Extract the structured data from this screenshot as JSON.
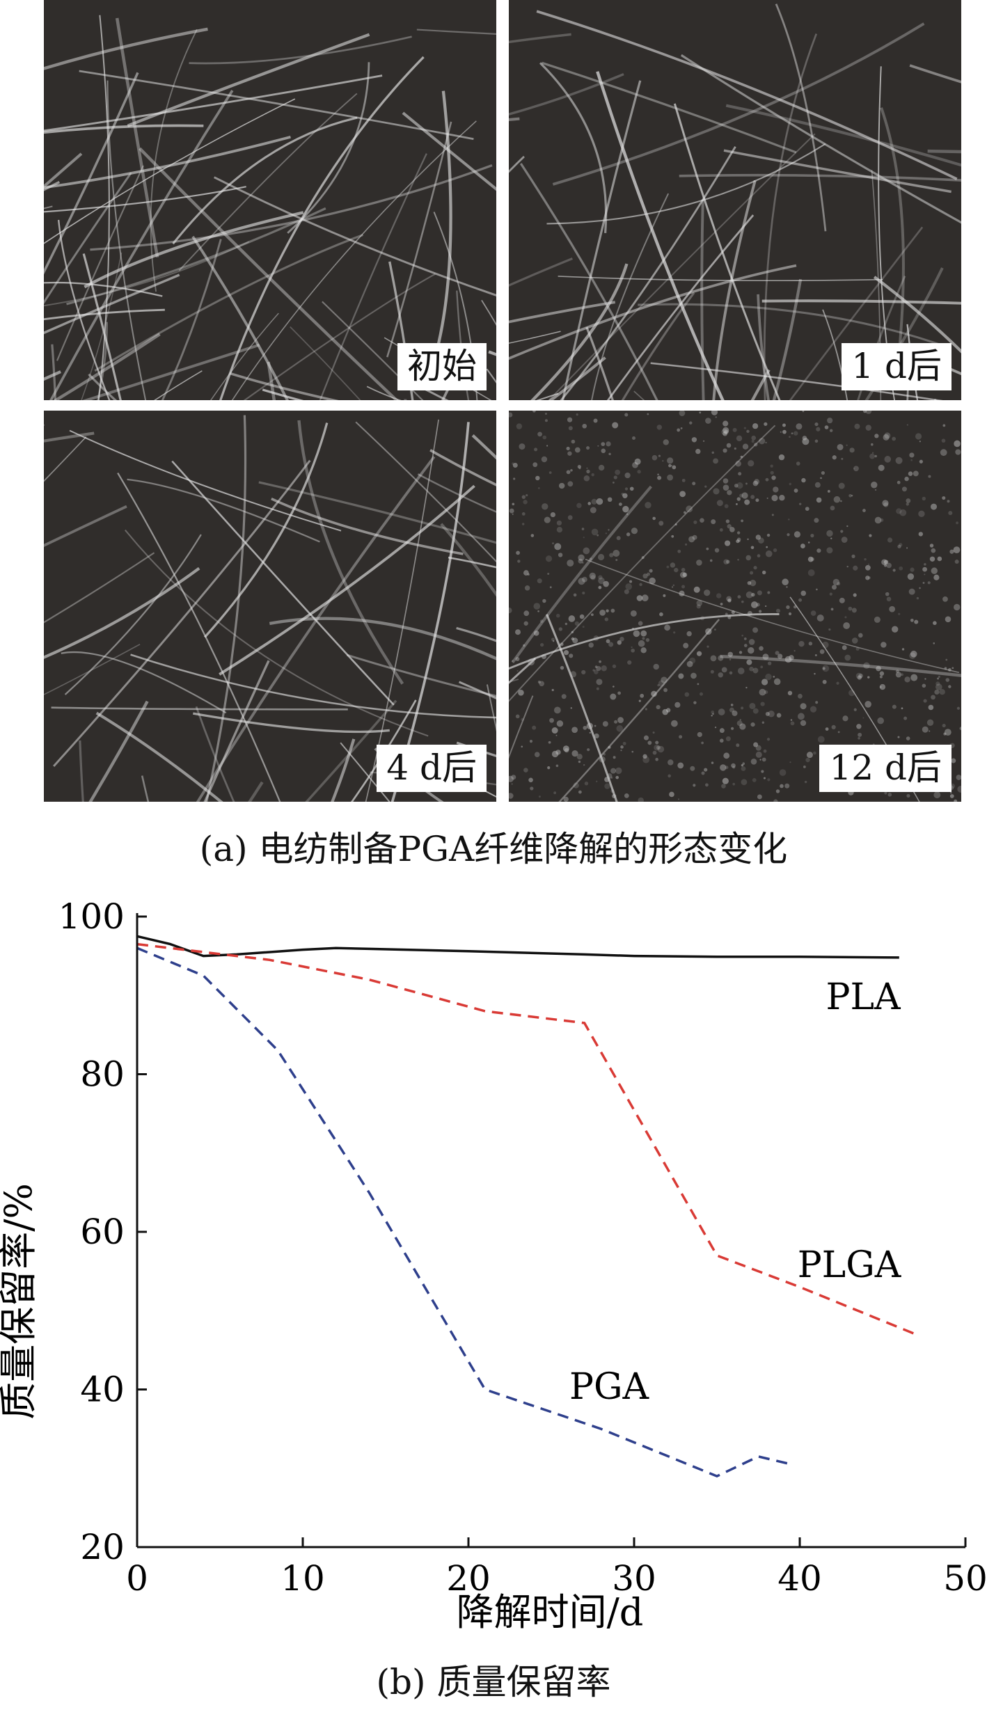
{
  "panel_a": {
    "images": [
      {
        "label": "初始"
      },
      {
        "label": "1 d后"
      },
      {
        "label": "4 d后"
      },
      {
        "label": "12 d后"
      }
    ],
    "caption": "(a) 电纺制备PGA纤维降解的形态变化"
  },
  "panel_b": {
    "caption": "(b) 质量保留率"
  },
  "chart_data": {
    "type": "line",
    "xlabel": "降解时间/d",
    "ylabel": "质量保留率/%",
    "xlim": [
      0,
      50
    ],
    "ylim": [
      20,
      100
    ],
    "xticks": [
      "0",
      "10",
      "20",
      "30",
      "40",
      "50"
    ],
    "yticks": [
      "20",
      "40",
      "60",
      "80",
      "100"
    ],
    "grid": false,
    "legend": "none (series labels placed beside curves)",
    "series": [
      {
        "name": "PLA",
        "color": "#111111",
        "dash": "solid",
        "x": [
          0,
          2,
          4,
          6,
          10,
          12,
          14,
          20,
          27,
          30,
          35,
          40,
          46
        ],
        "y": [
          97.5,
          96.5,
          95,
          95.2,
          95.8,
          96,
          95.9,
          95.6,
          95.2,
          95,
          94.9,
          94.9,
          94.8
        ]
      },
      {
        "name": "PLGA",
        "color": "#d93a35",
        "dash": "dashed",
        "x": [
          0,
          4,
          8,
          14,
          21,
          27,
          35,
          40,
          47
        ],
        "y": [
          96.5,
          95.5,
          94.5,
          92,
          88,
          86.5,
          57,
          53,
          47
        ]
      },
      {
        "name": "PGA",
        "color": "#2e3f8c",
        "dash": "dashed",
        "x": [
          0,
          4,
          8.5,
          14,
          21,
          28,
          35,
          37.5,
          39.5
        ],
        "y": [
          96,
          92.5,
          83,
          65,
          40,
          35,
          29,
          31.5,
          30.5
        ]
      }
    ]
  }
}
